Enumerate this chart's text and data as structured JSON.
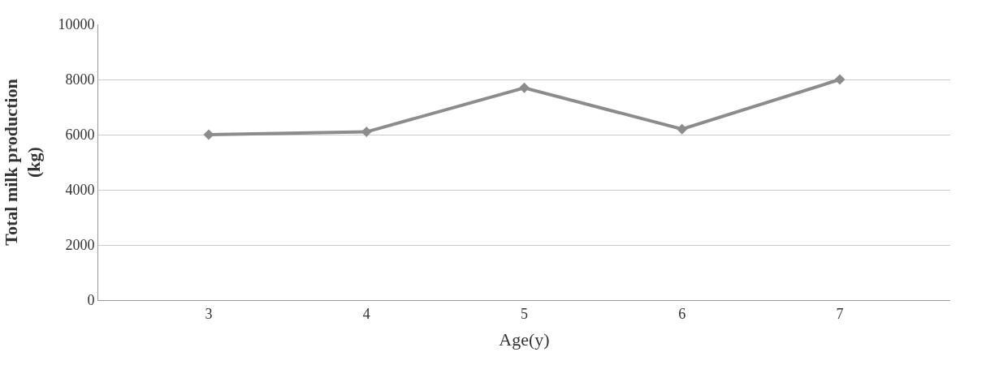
{
  "chart_data": {
    "type": "line",
    "xlabel": "Age(y)",
    "ylabel": "Total milk production\n(kg)",
    "categories": [
      "3",
      "4",
      "5",
      "6",
      "7"
    ],
    "series": [
      {
        "color": "#8c8c8c",
        "values": [
          6000,
          6100,
          7700,
          6200,
          8000
        ]
      }
    ],
    "ylim": [
      0,
      10000
    ],
    "yticks": [
      0,
      2000,
      4000,
      6000,
      8000,
      10000
    ],
    "grid": "y",
    "marker": "diamond",
    "line_style": "solid"
  }
}
